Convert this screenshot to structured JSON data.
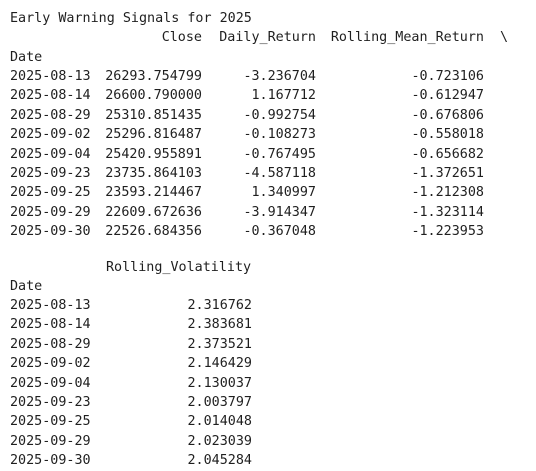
{
  "title": "Early Warning Signals for 2025",
  "table1": {
    "headers": {
      "close": "Close",
      "daily_return": "Daily_Return",
      "rolling_mean_return": "Rolling_Mean_Return",
      "continuation": "\\"
    },
    "index_name": "Date",
    "rows": [
      {
        "date": "2025-08-13",
        "close": "26293.754799",
        "daily_return": "-3.236704",
        "rolling_mean_return": "-0.723106"
      },
      {
        "date": "2025-08-14",
        "close": "26600.790000",
        "daily_return": "1.167712",
        "rolling_mean_return": "-0.612947"
      },
      {
        "date": "2025-08-29",
        "close": "25310.851435",
        "daily_return": "-0.992754",
        "rolling_mean_return": "-0.676806"
      },
      {
        "date": "2025-09-02",
        "close": "25296.816487",
        "daily_return": "-0.108273",
        "rolling_mean_return": "-0.558018"
      },
      {
        "date": "2025-09-04",
        "close": "25420.955891",
        "daily_return": "-0.767495",
        "rolling_mean_return": "-0.656682"
      },
      {
        "date": "2025-09-23",
        "close": "23735.864103",
        "daily_return": "-4.587118",
        "rolling_mean_return": "-1.372651"
      },
      {
        "date": "2025-09-25",
        "close": "23593.214467",
        "daily_return": "1.340997",
        "rolling_mean_return": "-1.212308"
      },
      {
        "date": "2025-09-29",
        "close": "22609.672636",
        "daily_return": "-3.914347",
        "rolling_mean_return": "-1.323114"
      },
      {
        "date": "2025-09-30",
        "close": "22526.684356",
        "daily_return": "-0.367048",
        "rolling_mean_return": "-1.223953"
      }
    ]
  },
  "table2": {
    "headers": {
      "rolling_volatility": "Rolling_Volatility"
    },
    "index_name": "Date",
    "rows": [
      {
        "date": "2025-08-13",
        "rolling_volatility": "2.316762"
      },
      {
        "date": "2025-08-14",
        "rolling_volatility": "2.383681"
      },
      {
        "date": "2025-08-29",
        "rolling_volatility": "2.373521"
      },
      {
        "date": "2025-09-02",
        "rolling_volatility": "2.146429"
      },
      {
        "date": "2025-09-04",
        "rolling_volatility": "2.130037"
      },
      {
        "date": "2025-09-23",
        "rolling_volatility": "2.003797"
      },
      {
        "date": "2025-09-25",
        "rolling_volatility": "2.014048"
      },
      {
        "date": "2025-09-29",
        "rolling_volatility": "2.023039"
      },
      {
        "date": "2025-09-30",
        "rolling_volatility": "2.045284"
      }
    ]
  }
}
